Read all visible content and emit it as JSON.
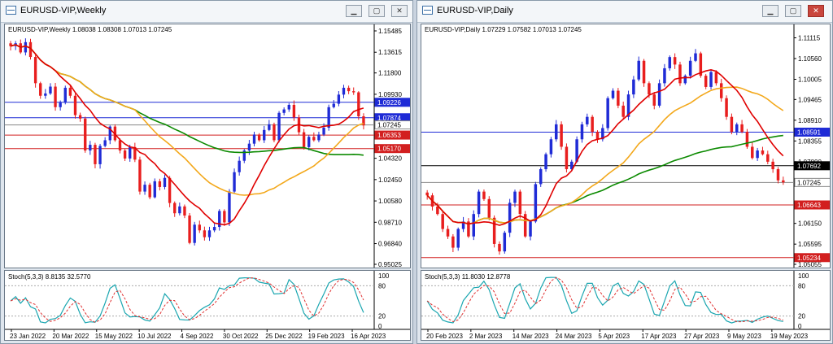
{
  "windows": [
    {
      "title": "EURUSD-VIP,Weekly",
      "info": "EURUSD-VIP,Weekly  1.08038 1.08308 1.07013 1.07245",
      "stoch_label": "Stoch(5,3,3) 8.8135 32.5770",
      "price_ticks": [
        "1.15485",
        "1.13615",
        "1.11800",
        "1.09930",
        "1.06200",
        "1.04320",
        "1.02450",
        "1.00580",
        "0.98710",
        "0.96840",
        "0.95025"
      ],
      "price_tick_values": [
        1.15485,
        1.13615,
        1.118,
        1.0993,
        1.062,
        1.0432,
        1.0245,
        1.0058,
        0.9871,
        0.9684,
        0.95025
      ],
      "price_range": [
        0.95025,
        1.15485
      ],
      "hlines": [
        {
          "value": 1.09226,
          "label": "1.09226",
          "color": "#1f2bd6",
          "label_bg": "#1f2bd6"
        },
        {
          "value": 1.07874,
          "label": "1.07874",
          "color": "#1f2bd6",
          "label_bg": "#1f2bd6"
        },
        {
          "value": 1.07245,
          "label": "1.07245",
          "color": "#888888",
          "label_bg": "#ffffff"
        },
        {
          "value": 1.06353,
          "label": "1.06353",
          "color": "#d21f1f",
          "label_bg": "#d21f1f"
        },
        {
          "value": 1.0517,
          "label": "1.05170",
          "color": "#d21f1f",
          "label_bg": "#d21f1f"
        }
      ],
      "stoch_ticks": [
        "100",
        "80",
        "20",
        "0"
      ],
      "date_ticks": [
        "23 Jan 2022",
        "20 Mar 2022",
        "15 May 2022",
        "10 Jul 2022",
        "4 Sep 2022",
        "30 Oct 2022",
        "25 Dec 2022",
        "19 Feb 2023",
        "16 Apr 2023"
      ],
      "closes": [
        1.1415,
        1.144,
        1.136,
        1.145,
        1.132,
        1.109,
        1.098,
        1.1,
        1.106,
        1.088,
        1.092,
        1.105,
        1.098,
        1.081,
        1.078,
        1.05,
        1.055,
        1.038,
        1.054,
        1.059,
        1.071,
        1.059,
        1.05,
        1.043,
        1.053,
        1.042,
        1.014,
        1.02,
        1.009,
        1.023,
        1.018,
        1.026,
        1.004,
        0.995,
        1.001,
        0.993,
        0.969,
        0.985,
        0.98,
        0.974,
        0.98,
        0.983,
        0.997,
        0.987,
        1.014,
        1.031,
        1.041,
        1.05,
        1.056,
        1.064,
        1.059,
        1.068,
        1.073,
        1.059,
        1.083,
        1.086,
        1.09,
        1.079,
        1.066,
        1.053,
        1.062,
        1.059,
        1.064,
        1.07,
        1.088,
        1.091,
        1.099,
        1.105,
        1.102,
        1.101,
        1.08,
        1.072
      ],
      "sma_fast": 10,
      "sma_mid": 26,
      "sma_slow": 60,
      "colors": {
        "up": "#1f2bd6",
        "down": "#e81e1e",
        "fast": "#e00000",
        "mid": "#f3a81b",
        "slow": "#0b8a00",
        "k": "#1aa6b0",
        "d": "#e03030"
      }
    },
    {
      "title": "EURUSD-VIP,Daily",
      "info": "EURUSD-VIP,Daily  1.07229 1.07582 1.07013 1.07245",
      "stoch_label": "Stoch(5,3,3) 11.8030 12.8778",
      "price_ticks": [
        "1.11115",
        "1.10560",
        "1.10005",
        "1.09465",
        "1.08910",
        "1.08355",
        "1.07800",
        "1.06690",
        "1.06150",
        "1.05595",
        "1.05055"
      ],
      "price_tick_values": [
        1.11115,
        1.1056,
        1.10005,
        1.09465,
        1.0891,
        1.08355,
        1.078,
        1.0669,
        1.0615,
        1.05595,
        1.05055
      ],
      "price_range": [
        1.05055,
        1.113
      ],
      "hlines": [
        {
          "value": 1.08591,
          "label": "1.08591",
          "color": "#1f2bd6",
          "label_bg": "#1f2bd6"
        },
        {
          "value": 1.07692,
          "label": "1.07692",
          "color": "#000000",
          "label_bg": "#000000"
        },
        {
          "value": 1.07245,
          "label": "1.07245",
          "color": "#888888",
          "label_bg": "#ffffff"
        },
        {
          "value": 1.06643,
          "label": "1.06643",
          "color": "#d21f1f",
          "label_bg": "#d21f1f"
        },
        {
          "value": 1.05234,
          "label": "1.05234",
          "color": "#d21f1f",
          "label_bg": "#d21f1f"
        }
      ],
      "stoch_ticks": [
        "100",
        "80",
        "20",
        "0"
      ],
      "date_ticks": [
        "20 Feb 2023",
        "2 Mar 2023",
        "14 Mar 2023",
        "24 Mar 2023",
        "5 Apr 2023",
        "17 Apr 2023",
        "27 Apr 2023",
        "9 May 2023",
        "19 May 2023"
      ],
      "closes": [
        1.069,
        1.066,
        1.064,
        1.06,
        1.058,
        1.055,
        1.06,
        1.062,
        1.058,
        1.064,
        1.07,
        1.068,
        1.063,
        1.056,
        1.054,
        1.059,
        1.067,
        1.07,
        1.064,
        1.058,
        1.062,
        1.072,
        1.076,
        1.08,
        1.084,
        1.088,
        1.082,
        1.076,
        1.078,
        1.084,
        1.088,
        1.09,
        1.086,
        1.084,
        1.087,
        1.095,
        1.097,
        1.093,
        1.09,
        1.096,
        1.1,
        1.105,
        1.099,
        1.096,
        1.093,
        1.099,
        1.103,
        1.106,
        1.104,
        1.099,
        1.101,
        1.105,
        1.107,
        1.101,
        1.098,
        1.102,
        1.099,
        1.095,
        1.09,
        1.086,
        1.088,
        1.086,
        1.082,
        1.079,
        1.081,
        1.08,
        1.078,
        1.076,
        1.073,
        1.0725
      ],
      "sma_fast": 10,
      "sma_mid": 26,
      "sma_slow": 60,
      "colors": {
        "up": "#1f2bd6",
        "down": "#e81e1e",
        "fast": "#e00000",
        "mid": "#f3a81b",
        "slow": "#0b8a00",
        "k": "#1aa6b0",
        "d": "#e03030"
      }
    }
  ]
}
